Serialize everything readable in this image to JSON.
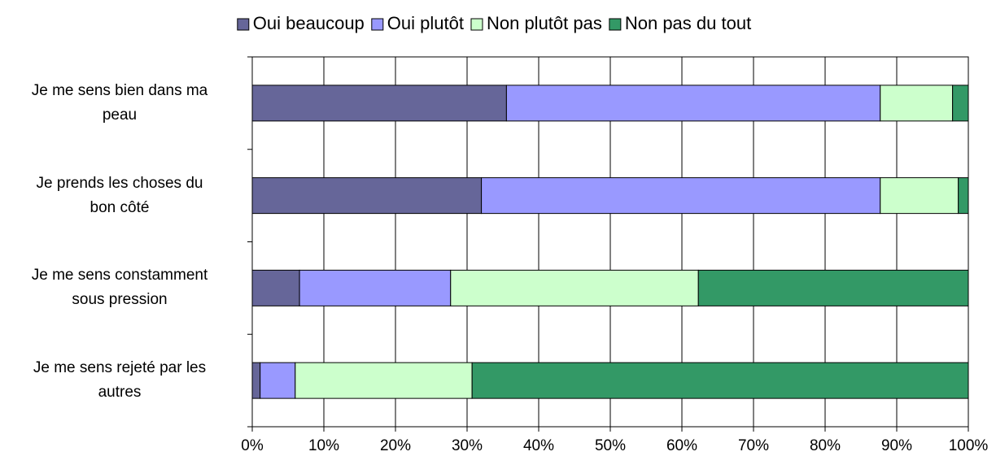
{
  "chart_data": {
    "type": "stacked_barh",
    "categories": [
      "Je me sens bien dans ma\npeau",
      "Je prends les choses du\nbon côté",
      "Je me sens constamment\nsous pression",
      "Je me sens rejeté par les\nautres"
    ],
    "series": [
      {
        "name": "Oui beaucoup",
        "color": "#666699",
        "values": [
          35.5,
          32.0,
          6.6,
          1.1
        ]
      },
      {
        "name": "Oui plutôt",
        "color": "#9999ff",
        "values": [
          52.2,
          55.7,
          21.1,
          4.9
        ]
      },
      {
        "name": "Non plutôt pas",
        "color": "#ccffcc",
        "values": [
          10.1,
          10.9,
          34.6,
          24.7
        ]
      },
      {
        "name": "Non pas du tout",
        "color": "#339966",
        "values": [
          2.2,
          1.4,
          37.7,
          69.3
        ]
      }
    ],
    "xlim": [
      0,
      100
    ],
    "xticks": [
      {
        "value": 0,
        "label": "0%"
      },
      {
        "value": 10,
        "label": "10%"
      },
      {
        "value": 20,
        "label": "20%"
      },
      {
        "value": 30,
        "label": "30%"
      },
      {
        "value": 40,
        "label": "40%"
      },
      {
        "value": 50,
        "label": "50%"
      },
      {
        "value": 60,
        "label": "60%"
      },
      {
        "value": 70,
        "label": "70%"
      },
      {
        "value": 80,
        "label": "80%"
      },
      {
        "value": 90,
        "label": "90%"
      },
      {
        "value": 100,
        "label": "100%"
      }
    ],
    "grid": true,
    "legend": "top"
  }
}
